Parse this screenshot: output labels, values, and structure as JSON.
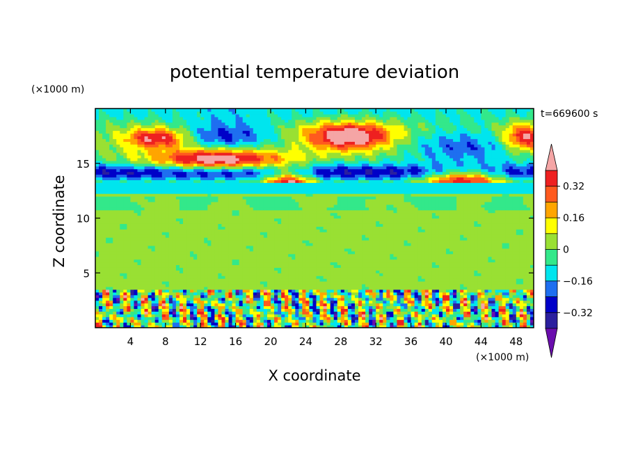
{
  "chart_data": {
    "type": "heatmap",
    "title": "potential temperature deviation",
    "xlabel": "X coordinate",
    "ylabel": "Z coordinate",
    "x_unit": "(×1000 m)",
    "y_unit": "(×1000 m)",
    "time_label": "t=669600 s",
    "xlim": [
      0,
      50
    ],
    "ylim": [
      0,
      20
    ],
    "x_ticks": [
      4,
      8,
      12,
      16,
      20,
      24,
      28,
      32,
      36,
      40,
      44,
      48
    ],
    "y_ticks": [
      5,
      10,
      15
    ],
    "colorbar": {
      "levels": [
        -0.4,
        -0.32,
        -0.24,
        -0.16,
        -0.08,
        0,
        0.08,
        0.16,
        0.24,
        0.32,
        0.4
      ],
      "labels": [
        "0.32",
        "0.16",
        "0",
        "−0.16",
        "−0.32"
      ],
      "label_values": [
        0.32,
        0.16,
        0,
        -0.16,
        -0.32
      ],
      "colors_low_to_high": [
        "#6a0dad",
        "#2b1f9e",
        "#0000c8",
        "#1e6ff0",
        "#00e5ee",
        "#33e88a",
        "#99e033",
        "#ffff00",
        "#ffa500",
        "#ff5a1e",
        "#ee2020",
        "#f5a5a5"
      ],
      "extend": "both"
    }
  }
}
